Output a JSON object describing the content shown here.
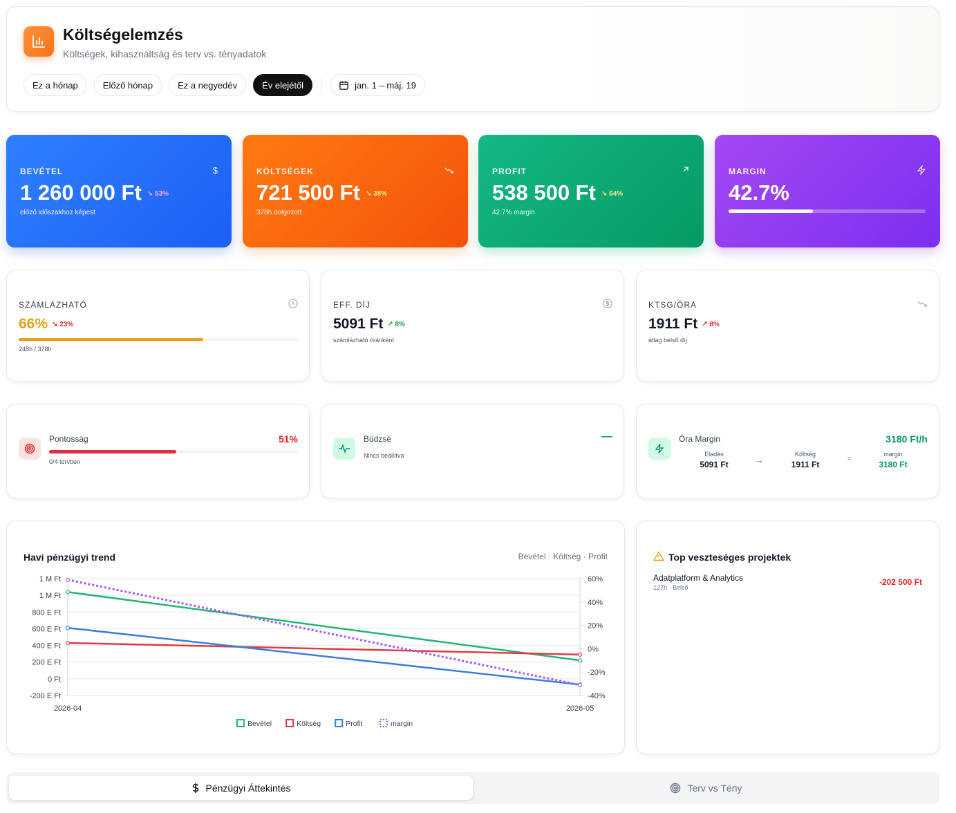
{
  "header": {
    "title": "Költségelemzés",
    "subtitle": "Költségek, kihasználtság és terv vs. tényadatok",
    "icon": "bar-chart-icon",
    "filters": [
      "Ez a hónap",
      "Előző hónap",
      "Ez a negyedév",
      "Év elejétől"
    ],
    "active_filter": "Év elejétől",
    "date_range": "jan. 1 – máj. 19"
  },
  "kpis": {
    "revenue": {
      "label": "BEVÉTEL",
      "value": "1 260 000 Ft",
      "change": "↘ 53%",
      "sub": "előző időszakhoz képest",
      "icon": "$"
    },
    "costs": {
      "label": "KÖLTSÉGEK",
      "value": "721 500 Ft",
      "change": "↘ 38%",
      "sub": "378h dolgozott",
      "icon": "trending-down-icon"
    },
    "profit": {
      "label": "PROFIT",
      "value": "538 500 Ft",
      "change": "↘ 64%",
      "sub": "42.7% margin",
      "icon": "arrow-up-right-icon"
    },
    "margin": {
      "label": "MARGIN",
      "value": "42.7%",
      "progress": 0.427,
      "icon": "lightning-icon"
    }
  },
  "stats": {
    "billable": {
      "label": "SZÁMLÁZHATÓ",
      "value": "66%",
      "change": "↘ 23%",
      "sub": "248h / 378h",
      "progress": 0.66,
      "color": "#e6a01c"
    },
    "eff_rate": {
      "label": "EFF. DÍJ",
      "value": "5091 Ft",
      "change": "↗ 8%",
      "sub": "számlázható óránként"
    },
    "cost_hour": {
      "label": "KTSG/ÓRA",
      "value": "1911 Ft",
      "change": "↗ 8%",
      "sub": "átlag belső díj"
    }
  },
  "mini": {
    "accuracy": {
      "title": "Pontosság",
      "value": "51%",
      "sub": "0/4 tervben",
      "progress": 0.51
    },
    "budget": {
      "title": "Büdzsé",
      "sub": "Nincs beállítva",
      "value": "—"
    },
    "hour_margin": {
      "title": "Óra Margin",
      "value": "3180 Ft/h",
      "sale_label": "Eladás",
      "sale_value": "5091 Ft",
      "arrow": "→",
      "cost_label": "Költség",
      "cost_value": "1911 Ft",
      "equals": "=",
      "margin_label": "margin",
      "margin_value": "3180 Ft"
    }
  },
  "chart": {
    "title": "Havi pénzügyi trend",
    "legend_top": "Bevétel · Költség · Profit"
  },
  "chart_data": {
    "type": "line",
    "x": [
      "2026-04",
      "2026-05"
    ],
    "y_left_ticks": [
      "1 M Ft",
      "1 M Ft",
      "800 E Ft",
      "600 E Ft",
      "400 E Ft",
      "200 E Ft",
      "0 Ft",
      "-200 E Ft"
    ],
    "y_right_ticks": [
      "60%",
      "40%",
      "20%",
      "0%",
      "-20%",
      "-40%"
    ],
    "ylim": [
      -200000,
      1200000
    ],
    "y2lim": [
      -40,
      60
    ],
    "series": [
      {
        "name": "Bevétel",
        "axis": "left",
        "values": [
          1040000,
          220000
        ],
        "color": "#22b573",
        "style": "solid"
      },
      {
        "name": "Költség",
        "axis": "left",
        "values": [
          430000,
          290000
        ],
        "color": "#dc3c45",
        "style": "solid"
      },
      {
        "name": "Profit",
        "axis": "left",
        "values": [
          610000,
          -70000
        ],
        "color": "#3b7ddd",
        "style": "solid"
      },
      {
        "name": "margin",
        "axis": "right",
        "values": [
          59,
          -31
        ],
        "color": "#a855f7",
        "style": "dotted"
      }
    ],
    "legend_position": "bottom"
  },
  "losses": {
    "title": "Top veszteséges projektek",
    "items": [
      {
        "name": "Adatplatform & Analytics",
        "meta": "127h · Belső",
        "value": "-202 500 Ft"
      }
    ]
  },
  "tabs": [
    {
      "label": "Pénzügyi Áttekintés",
      "icon": "dollar-icon",
      "active": true
    },
    {
      "label": "Terv vs Tény",
      "icon": "target-icon",
      "active": false
    }
  ]
}
